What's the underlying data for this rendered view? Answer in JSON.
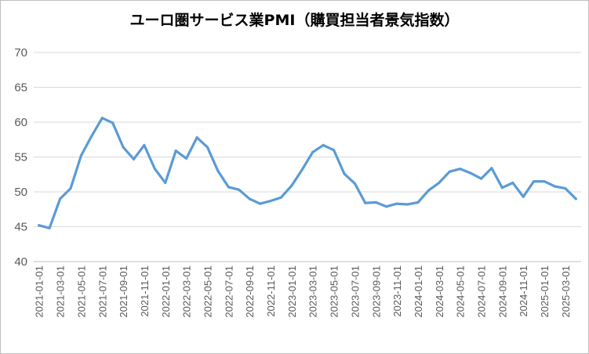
{
  "chart_data": {
    "type": "line",
    "title": "ユーロ圏サービス業PMI（購買担当者景気指数）",
    "xlabel": "",
    "ylabel": "",
    "ylim": [
      40,
      70
    ],
    "yticks": [
      40,
      45,
      50,
      55,
      60,
      65,
      70
    ],
    "grid": true,
    "legend": "none",
    "line_color": "#5b9bd5",
    "grid_color": "#d9d9d9",
    "x": [
      "2021-01-01",
      "2021-02-01",
      "2021-03-01",
      "2021-04-01",
      "2021-05-01",
      "2021-06-01",
      "2021-07-01",
      "2021-08-01",
      "2021-09-01",
      "2021-10-01",
      "2021-11-01",
      "2021-12-01",
      "2022-01-01",
      "2022-02-01",
      "2022-03-01",
      "2022-04-01",
      "2022-05-01",
      "2022-06-01",
      "2022-07-01",
      "2022-08-01",
      "2022-09-01",
      "2022-10-01",
      "2022-11-01",
      "2022-12-01",
      "2023-01-01",
      "2023-02-01",
      "2023-03-01",
      "2023-04-01",
      "2023-05-01",
      "2023-06-01",
      "2023-07-01",
      "2023-08-01",
      "2023-09-01",
      "2023-10-01",
      "2023-11-01",
      "2023-12-01",
      "2024-01-01",
      "2024-02-01",
      "2024-03-01",
      "2024-04-01",
      "2024-05-01",
      "2024-06-01",
      "2024-07-01",
      "2024-08-01",
      "2024-09-01",
      "2024-10-01",
      "2024-11-01",
      "2024-12-01",
      "2025-01-01",
      "2025-02-01",
      "2025-03-01",
      "2025-04-01"
    ],
    "x_tick_labels": [
      "2021-01-01",
      "2021-03-01",
      "2021-05-01",
      "2021-07-01",
      "2021-09-01",
      "2021-11-01",
      "2022-01-01",
      "2022-03-01",
      "2022-05-01",
      "2022-07-01",
      "2022-09-01",
      "2022-11-01",
      "2023-01-01",
      "2023-03-01",
      "2023-05-01",
      "2023-07-01",
      "2023-09-01",
      "2023-11-01",
      "2024-01-01",
      "2024-03-01",
      "2024-05-01",
      "2024-07-01",
      "2024-09-01",
      "2024-11-01",
      "2025-01-01",
      "2025-03-01"
    ],
    "values": [
      45.2,
      44.8,
      49.0,
      50.5,
      55.2,
      58.0,
      60.6,
      59.9,
      56.4,
      54.7,
      56.7,
      53.3,
      51.3,
      55.9,
      54.8,
      57.8,
      56.4,
      53.0,
      50.7,
      50.3,
      49.0,
      48.3,
      48.7,
      49.2,
      50.9,
      53.2,
      55.7,
      56.7,
      56.0,
      52.6,
      51.2,
      48.4,
      48.5,
      47.9,
      48.3,
      48.2,
      48.5,
      50.2,
      51.3,
      52.9,
      53.3,
      52.7,
      51.9,
      53.4,
      50.6,
      51.3,
      49.3,
      51.5,
      51.5,
      50.8,
      50.5,
      49.0
    ]
  }
}
